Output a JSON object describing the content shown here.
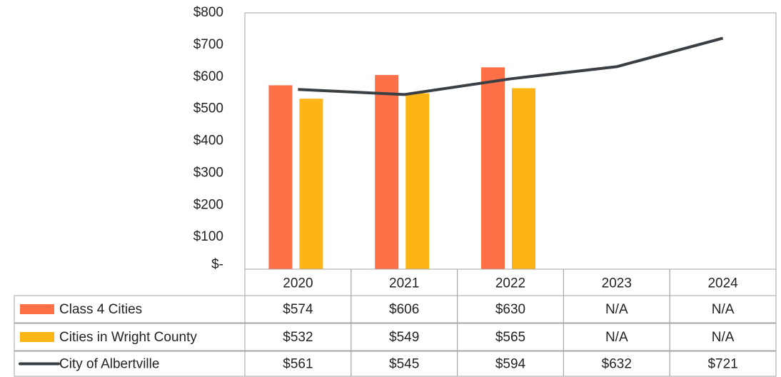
{
  "chart_data": {
    "type": "bar",
    "categories": [
      "2020",
      "2021",
      "2022",
      "2023",
      "2024"
    ],
    "series": [
      {
        "name": "Class 4 Cities",
        "color": "#ff7049",
        "values": [
          574,
          606,
          630,
          null,
          null
        ],
        "value_labels": [
          "$574",
          "$606",
          "$630",
          "N/A",
          "N/A"
        ]
      },
      {
        "name": "Cities in Wright County",
        "color": "#fdb515",
        "values": [
          532,
          549,
          565,
          null,
          null
        ],
        "value_labels": [
          "$532",
          "$549",
          "$565",
          "N/A",
          "N/A"
        ]
      },
      {
        "name": "City of Albertville",
        "type": "line",
        "color": "#3a3f44",
        "values": [
          561,
          545,
          594,
          632,
          721
        ],
        "value_labels": [
          "$561",
          "$545",
          "$594",
          "$632",
          "$721"
        ]
      }
    ],
    "ylim": [
      0,
      800
    ],
    "yticks": [
      {
        "value": 0,
        "label": "$-"
      },
      {
        "value": 100,
        "label": "$100"
      },
      {
        "value": 200,
        "label": "$200"
      },
      {
        "value": 300,
        "label": "$300"
      },
      {
        "value": 400,
        "label": "$400"
      },
      {
        "value": 500,
        "label": "$500"
      },
      {
        "value": 600,
        "label": "$600"
      },
      {
        "value": 700,
        "label": "$700"
      },
      {
        "value": 800,
        "label": "$800"
      }
    ],
    "grid": false
  }
}
